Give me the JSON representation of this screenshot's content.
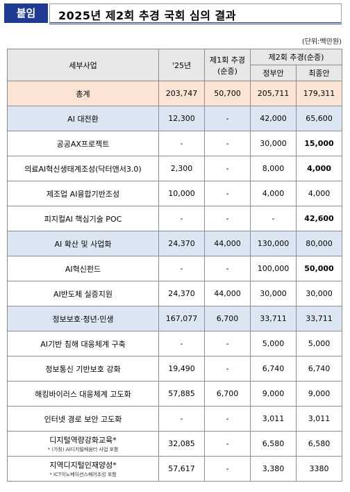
{
  "header": {
    "badge": "붙임",
    "title": "2025년 제2회 추경 국회 심의 결과",
    "unit": "(단위:백만원)"
  },
  "table": {
    "columns": {
      "item": "세부사업",
      "y25": "'25년",
      "first_a": "제1회 추경",
      "first_b": "(순증)",
      "second": "제2회 추경(순증)",
      "gov": "정부안",
      "final": "최종안"
    },
    "rows": [
      {
        "name": "총계",
        "y25": "203,747",
        "first": "50,700",
        "gov": "205,711",
        "final": "179,311"
      },
      {
        "name": "AI 대전환",
        "y25": "12,300",
        "first": "-",
        "gov": "42,000",
        "final": "65,600"
      },
      {
        "name": "공공AX프로젝트",
        "y25": "-",
        "first": "-",
        "gov": "30,000",
        "final": "15,000"
      },
      {
        "name": "의료AI혁신생태계조성(닥터앤서3.0)",
        "y25": "2,300",
        "first": "-",
        "gov": "8,000",
        "final": "4,000"
      },
      {
        "name": "제조업 AI융합기반조성",
        "y25": "10,000",
        "first": "-",
        "gov": "4,000",
        "final": "4,000"
      },
      {
        "name": "피지컬AI 핵심기술 POC",
        "y25": "-",
        "first": "-",
        "gov": "-",
        "final": "42,600"
      },
      {
        "name": "AI 확산 및 사업화",
        "y25": "24,370",
        "first": "44,000",
        "gov": "130,000",
        "final": "80,000"
      },
      {
        "name": "AI혁신펀드",
        "y25": "-",
        "first": "-",
        "gov": "100,000",
        "final": "50,000"
      },
      {
        "name": "AI반도체 실증지원",
        "y25": "24,370",
        "first": "44,000",
        "gov": "30,000",
        "final": "30,000"
      },
      {
        "name": "정보보호·청년·민생",
        "y25": "167,077",
        "first": "6,700",
        "gov": "33,711",
        "final": "33,711"
      },
      {
        "name": "AI기반 침해 대응체계 구축",
        "y25": "-",
        "first": "-",
        "gov": "5,000",
        "final": "5,000"
      },
      {
        "name": "정보통신 기반보호 강화",
        "y25": "19,490",
        "first": "-",
        "gov": "6,740",
        "final": "6,740"
      },
      {
        "name": "해킹바이러스 대응체계 고도화",
        "y25": "57,885",
        "first": "6,700",
        "gov": "9,000",
        "final": "9,000"
      },
      {
        "name": "인터넷 경로 보안 고도화",
        "y25": "-",
        "first": "-",
        "gov": "3,011",
        "final": "3,011"
      },
      {
        "name": "디지털역량강화교육*",
        "note": "* (가칭) AI디지털배움터 사업 포함",
        "y25": "32,085",
        "first": "-",
        "gov": "6,580",
        "final": "6,580"
      },
      {
        "name": "지역디지털인재양성*",
        "note": "* ICT이노베이션스퀘어조성 포함",
        "y25": "57,617",
        "first": "-",
        "gov": "3,380",
        "final": "3380"
      }
    ]
  }
}
